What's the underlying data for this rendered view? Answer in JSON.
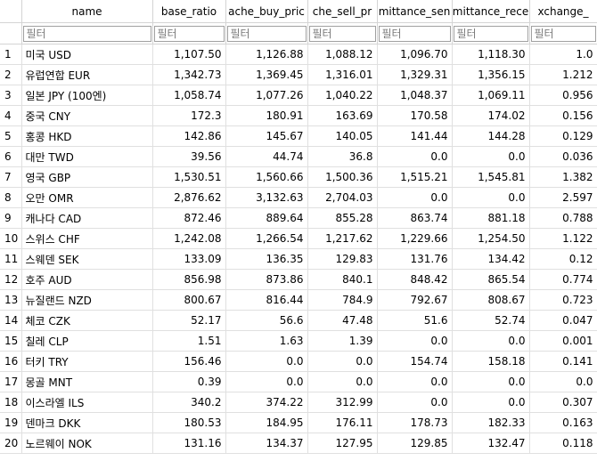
{
  "columns": [
    {
      "label": "name",
      "align": "center"
    },
    {
      "label": "base_ratio",
      "align": "center"
    },
    {
      "label": "ache_buy_pric",
      "align": "center"
    },
    {
      "label": "che_sell_pr",
      "align": "center"
    },
    {
      "label": "mittance_sen",
      "align": "center"
    },
    {
      "label": "mittance_rece",
      "align": "center"
    },
    {
      "label": "xchange_",
      "align": "center"
    }
  ],
  "filter_placeholder": "필터",
  "rows": [
    {
      "n": "1",
      "cells": [
        "미국 USD",
        "1,107.50",
        "1,126.88",
        "1,088.12",
        "1,096.70",
        "1,118.30",
        "1.0"
      ]
    },
    {
      "n": "2",
      "cells": [
        "유럽연합 EUR",
        "1,342.73",
        "1,369.45",
        "1,316.01",
        "1,329.31",
        "1,356.15",
        "1.212"
      ]
    },
    {
      "n": "3",
      "cells": [
        "일본 JPY (100엔)",
        "1,058.74",
        "1,077.26",
        "1,040.22",
        "1,048.37",
        "1,069.11",
        "0.956"
      ]
    },
    {
      "n": "4",
      "cells": [
        "중국 CNY",
        "172.3",
        "180.91",
        "163.69",
        "170.58",
        "174.02",
        "0.156"
      ]
    },
    {
      "n": "5",
      "cells": [
        "홍콩 HKD",
        "142.86",
        "145.67",
        "140.05",
        "141.44",
        "144.28",
        "0.129"
      ]
    },
    {
      "n": "6",
      "cells": [
        "대만 TWD",
        "39.56",
        "44.74",
        "36.8",
        "0.0",
        "0.0",
        "0.036"
      ]
    },
    {
      "n": "7",
      "cells": [
        "영국 GBP",
        "1,530.51",
        "1,560.66",
        "1,500.36",
        "1,515.21",
        "1,545.81",
        "1.382"
      ]
    },
    {
      "n": "8",
      "cells": [
        "오만 OMR",
        "2,876.62",
        "3,132.63",
        "2,704.03",
        "0.0",
        "0.0",
        "2.597"
      ]
    },
    {
      "n": "9",
      "cells": [
        "캐나다 CAD",
        "872.46",
        "889.64",
        "855.28",
        "863.74",
        "881.18",
        "0.788"
      ]
    },
    {
      "n": "10",
      "cells": [
        "스위스 CHF",
        "1,242.08",
        "1,266.54",
        "1,217.62",
        "1,229.66",
        "1,254.50",
        "1.122"
      ]
    },
    {
      "n": "11",
      "cells": [
        "스웨덴 SEK",
        "133.09",
        "136.35",
        "129.83",
        "131.76",
        "134.42",
        "0.12"
      ]
    },
    {
      "n": "12",
      "cells": [
        "호주 AUD",
        "856.98",
        "873.86",
        "840.1",
        "848.42",
        "865.54",
        "0.774"
      ]
    },
    {
      "n": "13",
      "cells": [
        "뉴질랜드 NZD",
        "800.67",
        "816.44",
        "784.9",
        "792.67",
        "808.67",
        "0.723"
      ]
    },
    {
      "n": "14",
      "cells": [
        "체코 CZK",
        "52.17",
        "56.6",
        "47.48",
        "51.6",
        "52.74",
        "0.047"
      ]
    },
    {
      "n": "15",
      "cells": [
        "칠레 CLP",
        "1.51",
        "1.63",
        "1.39",
        "0.0",
        "0.0",
        "0.001"
      ]
    },
    {
      "n": "16",
      "cells": [
        "터키 TRY",
        "156.46",
        "0.0",
        "0.0",
        "154.74",
        "158.18",
        "0.141"
      ]
    },
    {
      "n": "17",
      "cells": [
        "몽골 MNT",
        "0.39",
        "0.0",
        "0.0",
        "0.0",
        "0.0",
        "0.0"
      ]
    },
    {
      "n": "18",
      "cells": [
        "이스라엘 ILS",
        "340.2",
        "374.22",
        "312.99",
        "0.0",
        "0.0",
        "0.307"
      ]
    },
    {
      "n": "19",
      "cells": [
        "덴마크 DKK",
        "180.53",
        "184.95",
        "176.11",
        "178.73",
        "182.33",
        "0.163"
      ]
    },
    {
      "n": "20",
      "cells": [
        "노르웨이 NOK",
        "131.16",
        "134.37",
        "127.95",
        "129.85",
        "132.47",
        "0.118"
      ]
    }
  ]
}
